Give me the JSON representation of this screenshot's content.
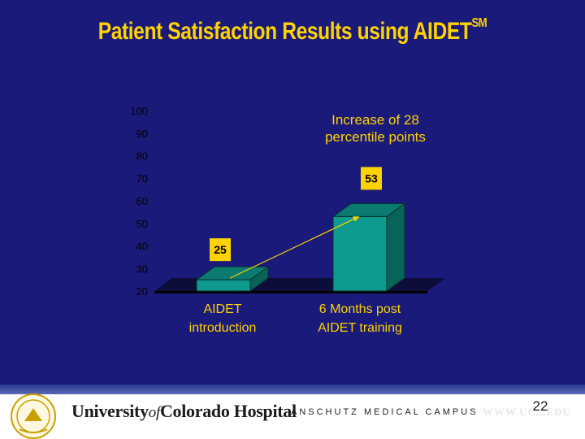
{
  "slide": {
    "title": "Patient Satisfaction Results using AIDET",
    "title_superscript": "SM",
    "page_number": "22"
  },
  "footer": {
    "hospital_name_part1": "University",
    "hospital_name_of": "of",
    "hospital_name_part2": "Colorado Hospital",
    "campus": "ANSCHUTZ MEDICAL CAMPUS",
    "url": "WWW.UC...EDU"
  },
  "colors": {
    "background": "#1a1a7a",
    "title": "#ffd200",
    "bar_front": "#0e9a8e",
    "bar_side": "#086458",
    "floor": "#0d0d3a",
    "label_box": "#ffd200",
    "category_text": "#ffd200",
    "annotation_text": "#ffd200",
    "tick_text": "#000000",
    "arrow": "#ffd200"
  },
  "chart_data": {
    "type": "bar",
    "categories": [
      "AIDET introduction",
      "6 Months post AIDET training"
    ],
    "category_lines": [
      [
        "AIDET",
        "introduction"
      ],
      [
        "6 Months post",
        "AIDET training"
      ]
    ],
    "values": [
      25,
      53
    ],
    "data_labels": [
      "25",
      "53"
    ],
    "ylim": [
      20,
      100
    ],
    "yticks": [
      20,
      30,
      40,
      50,
      60,
      70,
      80,
      90,
      100
    ],
    "annotation": [
      "Increase of 28",
      "percentile points"
    ],
    "three_d": true,
    "grid": false,
    "legend": "none"
  }
}
